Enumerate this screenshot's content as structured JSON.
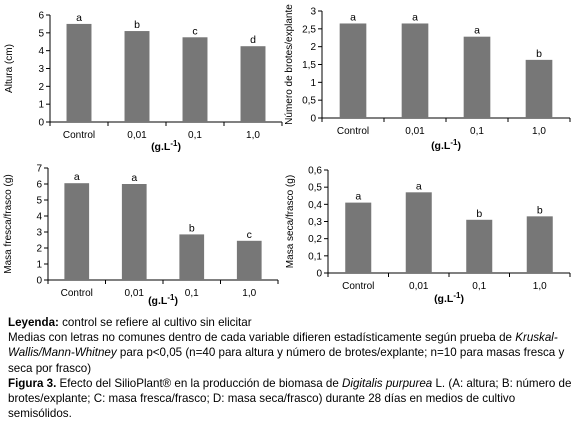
{
  "chart_data": [
    {
      "type": "bar",
      "categories": [
        "Control",
        "0,01",
        "0,1",
        "1,0"
      ],
      "values": [
        5.5,
        5.1,
        4.75,
        4.25
      ],
      "letters": [
        "a",
        "b",
        "c",
        "d"
      ],
      "ylabel": "Altura (cm)",
      "xlabel": "(g.L-1)",
      "ylim": [
        0,
        6
      ],
      "yticks": [
        "0",
        "1",
        "2",
        "3",
        "4",
        "5",
        "6"
      ],
      "bar_color": "#777777"
    },
    {
      "type": "bar",
      "categories": [
        "Control",
        "0,01",
        "0,1",
        "1,0"
      ],
      "values": [
        2.65,
        2.65,
        2.28,
        1.63
      ],
      "letters": [
        "a",
        "a",
        "a",
        "b"
      ],
      "ylabel": "Número de brotes/explante",
      "xlabel": "(g.L-1)",
      "ylim": [
        0,
        3
      ],
      "yticks": [
        "0",
        "0,5",
        "1",
        "1,5",
        "2",
        "2,5",
        "3"
      ],
      "bar_color": "#777777"
    },
    {
      "type": "bar",
      "categories": [
        "Control",
        "0,01",
        "0,1",
        "1,0"
      ],
      "values": [
        6.05,
        6.0,
        2.85,
        2.45
      ],
      "letters": [
        "a",
        "a",
        "b",
        "c"
      ],
      "ylabel": "Masa fresca/frasco (g)",
      "xlabel": "(g.L-1)",
      "ylim": [
        0,
        7
      ],
      "yticks": [
        "0",
        "1",
        "2",
        "3",
        "4",
        "5",
        "6",
        "7"
      ],
      "bar_color": "#777777"
    },
    {
      "type": "bar",
      "categories": [
        "Control",
        "0,01",
        "0,1",
        "1,0"
      ],
      "values": [
        0.41,
        0.47,
        0.31,
        0.33
      ],
      "letters": [
        "a",
        "a",
        "b",
        "b"
      ],
      "ylabel": "Masa seca/frasco (g)",
      "xlabel": "(g.L-1)",
      "ylim": [
        0,
        0.6
      ],
      "yticks": [
        "0",
        "0,1",
        "0,2",
        "0,3",
        "0,4",
        "0,5",
        "0,6"
      ],
      "bar_color": "#777777"
    }
  ],
  "caption": {
    "legend_label": "Leyenda:",
    "legend_text": " control se refiere al cultivo sin elicitar",
    "line2_a": "Medias con letras no comunes dentro de cada variable difieren estadísticamente según prueba de ",
    "line2_test": "Kruskal-Wallis/Mann-Whitney",
    "line2_b": " para p<0,05 (n=40 para altura y número de brotes/explante; n=10 para masas fresca y seca por frasco)",
    "fig_label": "Figura 3.",
    "fig_a": " Efecto del SilioPlant® en la producción de biomasa de ",
    "fig_species": "Digitalis purpurea",
    "fig_b": " L. (A: altura; B: número de brotes/explante; C: masa fresca/frasco; D: masa seca/frasco) durante 28 días en medios de cultivo semisólidos."
  }
}
